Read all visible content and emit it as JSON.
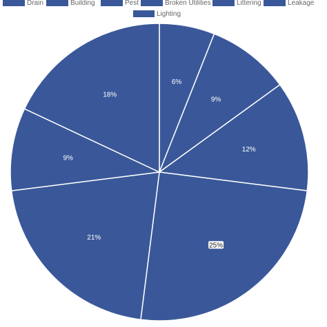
{
  "chart_data": {
    "type": "pie",
    "categories": [
      "Drain",
      "Building",
      "Pest",
      "Broken Utilities",
      "Littering",
      "Leakage",
      "Lighting"
    ],
    "values": [
      6,
      9,
      12,
      25,
      21,
      9,
      18
    ],
    "labels": [
      "6%",
      "9%",
      "12%",
      "25%",
      "21%",
      "9%",
      "18%"
    ],
    "highlighted_label_index": 3,
    "legend_position": "top",
    "colors": {
      "slice": "#3a5899",
      "border": "#ffffff",
      "legend_text": "#666666",
      "label_text": "#ffffff",
      "highlight_box": "#ffffff"
    }
  }
}
